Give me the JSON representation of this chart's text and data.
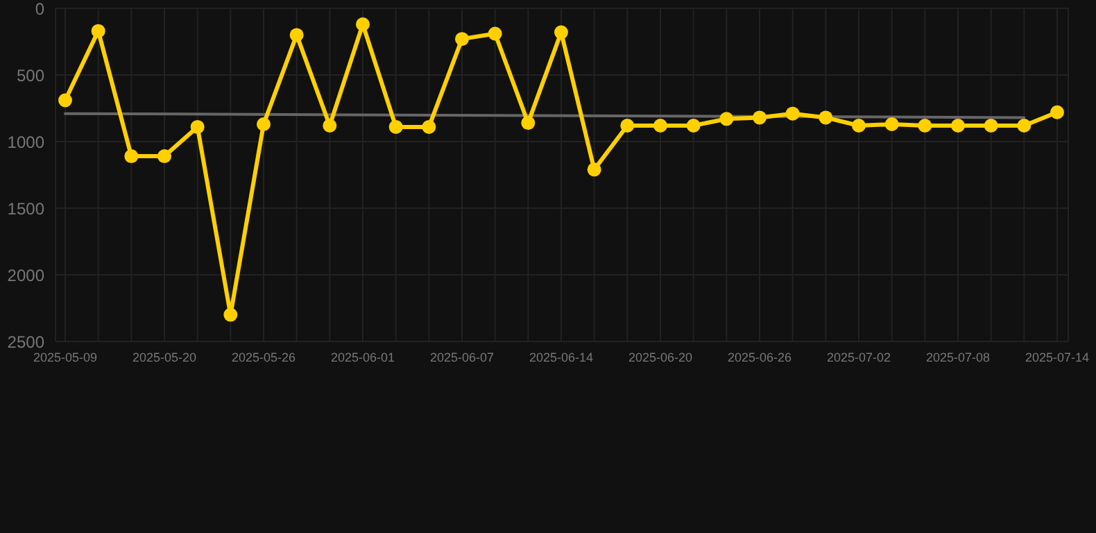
{
  "chart_data": {
    "type": "line",
    "categories": [
      "2025-05-09",
      null,
      null,
      "2025-05-20",
      null,
      null,
      "2025-05-26",
      null,
      null,
      "2025-06-01",
      null,
      null,
      "2025-06-07",
      null,
      null,
      "2025-06-14",
      null,
      null,
      "2025-06-20",
      null,
      null,
      "2025-06-26",
      null,
      null,
      "2025-07-02",
      null,
      null,
      "2025-07-08",
      null,
      null,
      "2025-07-14"
    ],
    "series": [
      {
        "color": "#ffd000",
        "values": [
          690,
          170,
          1110,
          1110,
          890,
          2300,
          870,
          200,
          880,
          120,
          890,
          890,
          230,
          190,
          860,
          180,
          1210,
          880,
          880,
          880,
          830,
          820,
          790,
          820,
          880,
          870,
          880,
          880,
          880,
          880,
          780
        ]
      },
      {
        "color": "#666666",
        "marker": "none",
        "values": [
          790,
          null,
          null,
          null,
          null,
          null,
          null,
          null,
          null,
          null,
          null,
          null,
          null,
          null,
          null,
          null,
          null,
          null,
          null,
          null,
          null,
          null,
          null,
          null,
          null,
          null,
          null,
          null,
          null,
          820,
          null
        ]
      }
    ],
    "ylim": [
      2500,
      0
    ],
    "yticks": [
      0,
      500,
      1000,
      1500,
      2000,
      2500
    ],
    "grid": true,
    "marker": "circle",
    "line_style": "solid"
  }
}
